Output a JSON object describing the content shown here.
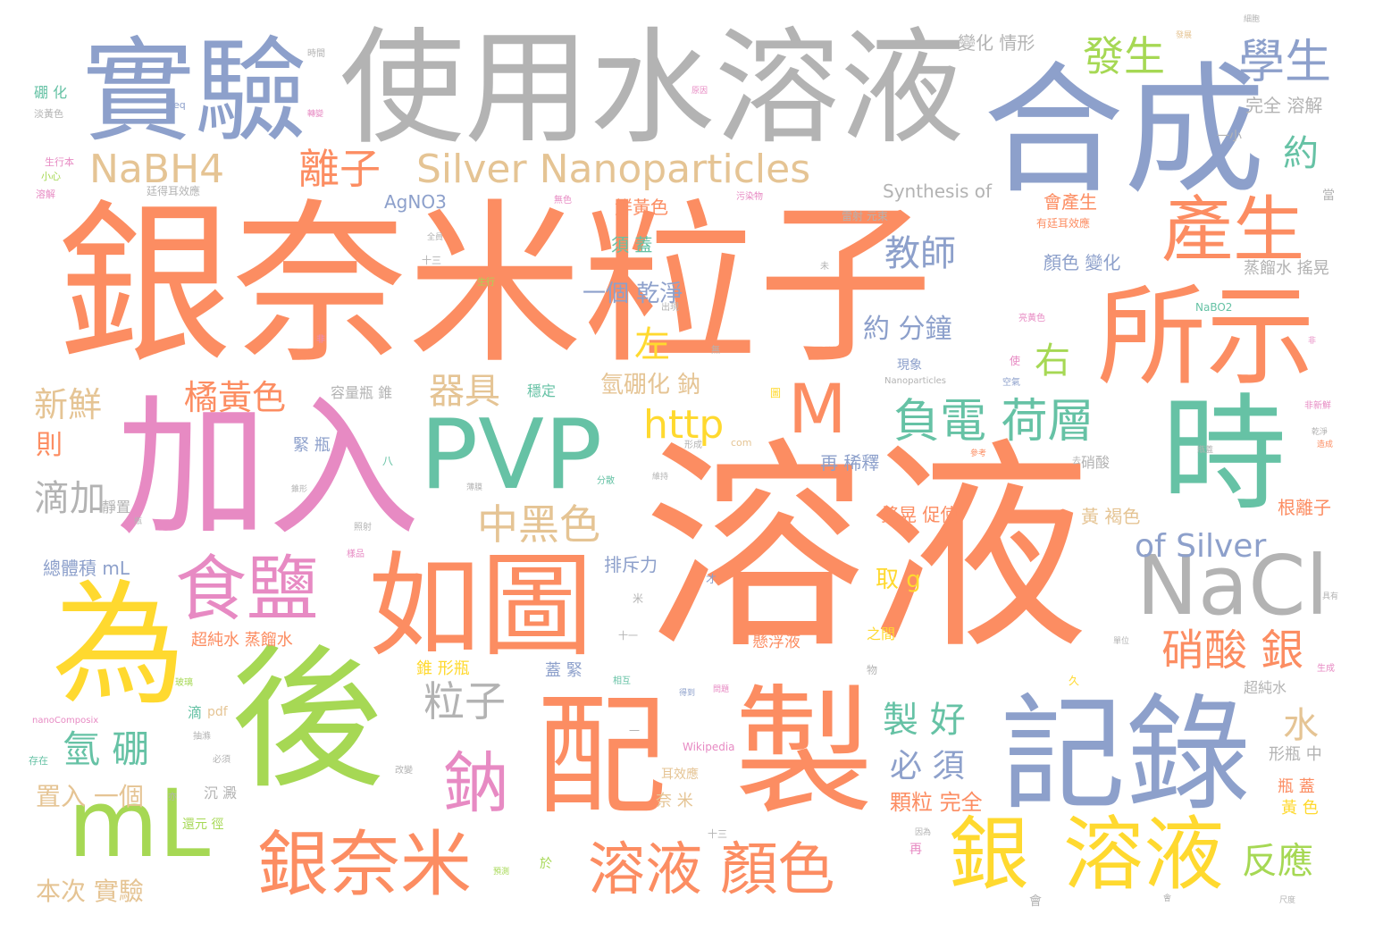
{
  "palette": {
    "orange": "#fc8d62",
    "blue": "#8da0cb",
    "green": "#66c2a5",
    "pink": "#e78ac3",
    "lime": "#a6d854",
    "yellow": "#ffd92f",
    "tan": "#e5c494",
    "gray": "#b3b3b3"
  },
  "words": {
    "w01": "銀奈米粒子",
    "w02": "溶液",
    "w03": "使用水溶液",
    "w04": "合成",
    "w05": "實驗",
    "w06": "加入",
    "w07": "後",
    "w08": "配",
    "w09": "製",
    "w10": "記錄",
    "w11": "為",
    "w12": "PVP",
    "w13": "時",
    "w14": "所示",
    "w15": "如圖",
    "w16": "產生",
    "w17": "mL",
    "w18": "NaCl",
    "w19": "銀奈米",
    "w20": "銀",
    "w21": "溶液",
    "w22": "食鹽",
    "w23": "Silver Nanoparticles",
    "w24": "NaBH4",
    "w25": "M",
    "w26": "鈉",
    "w27": "溶液 顏色",
    "w28": "負電 荷層",
    "w29": "學生",
    "w30": "發生",
    "w31": "離子",
    "w32": "http",
    "w33": "中黑色",
    "w34": "of Silver",
    "w35": "硝酸 銀",
    "w36": "器具",
    "w37": "橘黃色",
    "w38": "新鮮",
    "w39": "氫 硼",
    "w40": "粒子",
    "w41": "滴加",
    "w42": "右",
    "w43": "左",
    "w44": "教師",
    "w45": "約",
    "w46": "反應",
    "w47": "製 好",
    "w48": "必 須",
    "w49": "水",
    "w50": "約 分鐘",
    "w51": "氫硼化 鈉",
    "w52": "一個 乾淨",
    "w53": "則",
    "w54": "取 g",
    "w55": "本次 實驗",
    "w56": "置入 一個",
    "w57": "顆粒 完全",
    "w58": "變化 情形",
    "w59": "完全 溶解",
    "w60": "Synthesis of",
    "w61": "AgNO3",
    "w62": "鮮黃色",
    "w63": "會產生",
    "w64": "須 蓋",
    "w65": "顏色 變化",
    "w66": "蒸餾水 搖晃",
    "w67": "再 稀釋",
    "w68": "搖晃 促使",
    "w69": "黃 褐色",
    "w70": "根離子",
    "w71": "排斥力",
    "w72": "總體積 mL",
    "w73": "超純水 蒸餾水",
    "w74": "懸浮液",
    "w75": "錐 形瓶",
    "w76": "蓋 緊",
    "w77": "緊 瓶",
    "w78": "容量瓶 錐",
    "w79": "穩定",
    "w80": "硝酸",
    "w81": "之間",
    "w82": "超純水",
    "w83": "形瓶 中",
    "w84": "瓶 蓋",
    "w85": "黃 色",
    "w86": "奈 米",
    "w87": "耳效應",
    "w88": "沉 澱",
    "w89": "還元 徑",
    "w90": "滴",
    "w91": "pdf",
    "w92": "Wikipedia",
    "w93": "靜置",
    "w94": "現象",
    "w95": "雷射 元束",
    "w96": "有廷耳效應",
    "w97": "廷得耳效應",
    "w98": "一小",
    "w99": "當",
    "w100": "NaBO2",
    "w101": "Nanoparticles",
    "w102": "nanoComposix",
    "w103": "硼 化",
    "w104": "淡黃色",
    "w105": "生行本",
    "w106": "十三",
    "w107": "十一",
    "w108": "com",
    "w109": "污染物",
    "w110": "空氣",
    "w111": "亮黃色",
    "w112": "無色",
    "w113": "時間",
    "w114": "生成",
    "w115": "小心",
    "w116": "溶解",
    "w117": "生行",
    "w118": "細胞",
    "w119": "全員",
    "w120": "形成",
    "w121": "分散",
    "w122": "相互",
    "w123": "存在",
    "w124": "改變",
    "w125": "必須",
    "w126": "抽滌",
    "w127": "玻璃",
    "w128": "照射",
    "w129": "樣品",
    "w130": "圖",
    "w131": "物",
    "w132": "久",
    "w133": "再",
    "w134": "會",
    "w135": "於",
    "w136": "使",
    "w137": "才",
    "w138": "米",
    "w139": "八",
    "w140": "去",
    "w141": "無",
    "w142": "未",
    "w143": "出現",
    "w144": "非新鮮",
    "w145": "乾淨",
    "w146": "造成",
    "w147": "參考",
    "w148": "非",
    "w149": "單位",
    "w150": "因為",
    "w151": "預測",
    "w152": "錐形",
    "w153": "薄膜",
    "w154": "維持",
    "w155": "尺度",
    "w156": "具有",
    "w157": "得到",
    "w158": "問題",
    "w159": "瓶蓋",
    "w160": "發展",
    "w161": "原因",
    "w162": "轉變",
    "w163": "瓶",
    "w164": "eq",
    "w165": "亦",
    "w166": "會",
    "w167": "非",
    "w168": "一",
    "w169": "十三"
  }
}
